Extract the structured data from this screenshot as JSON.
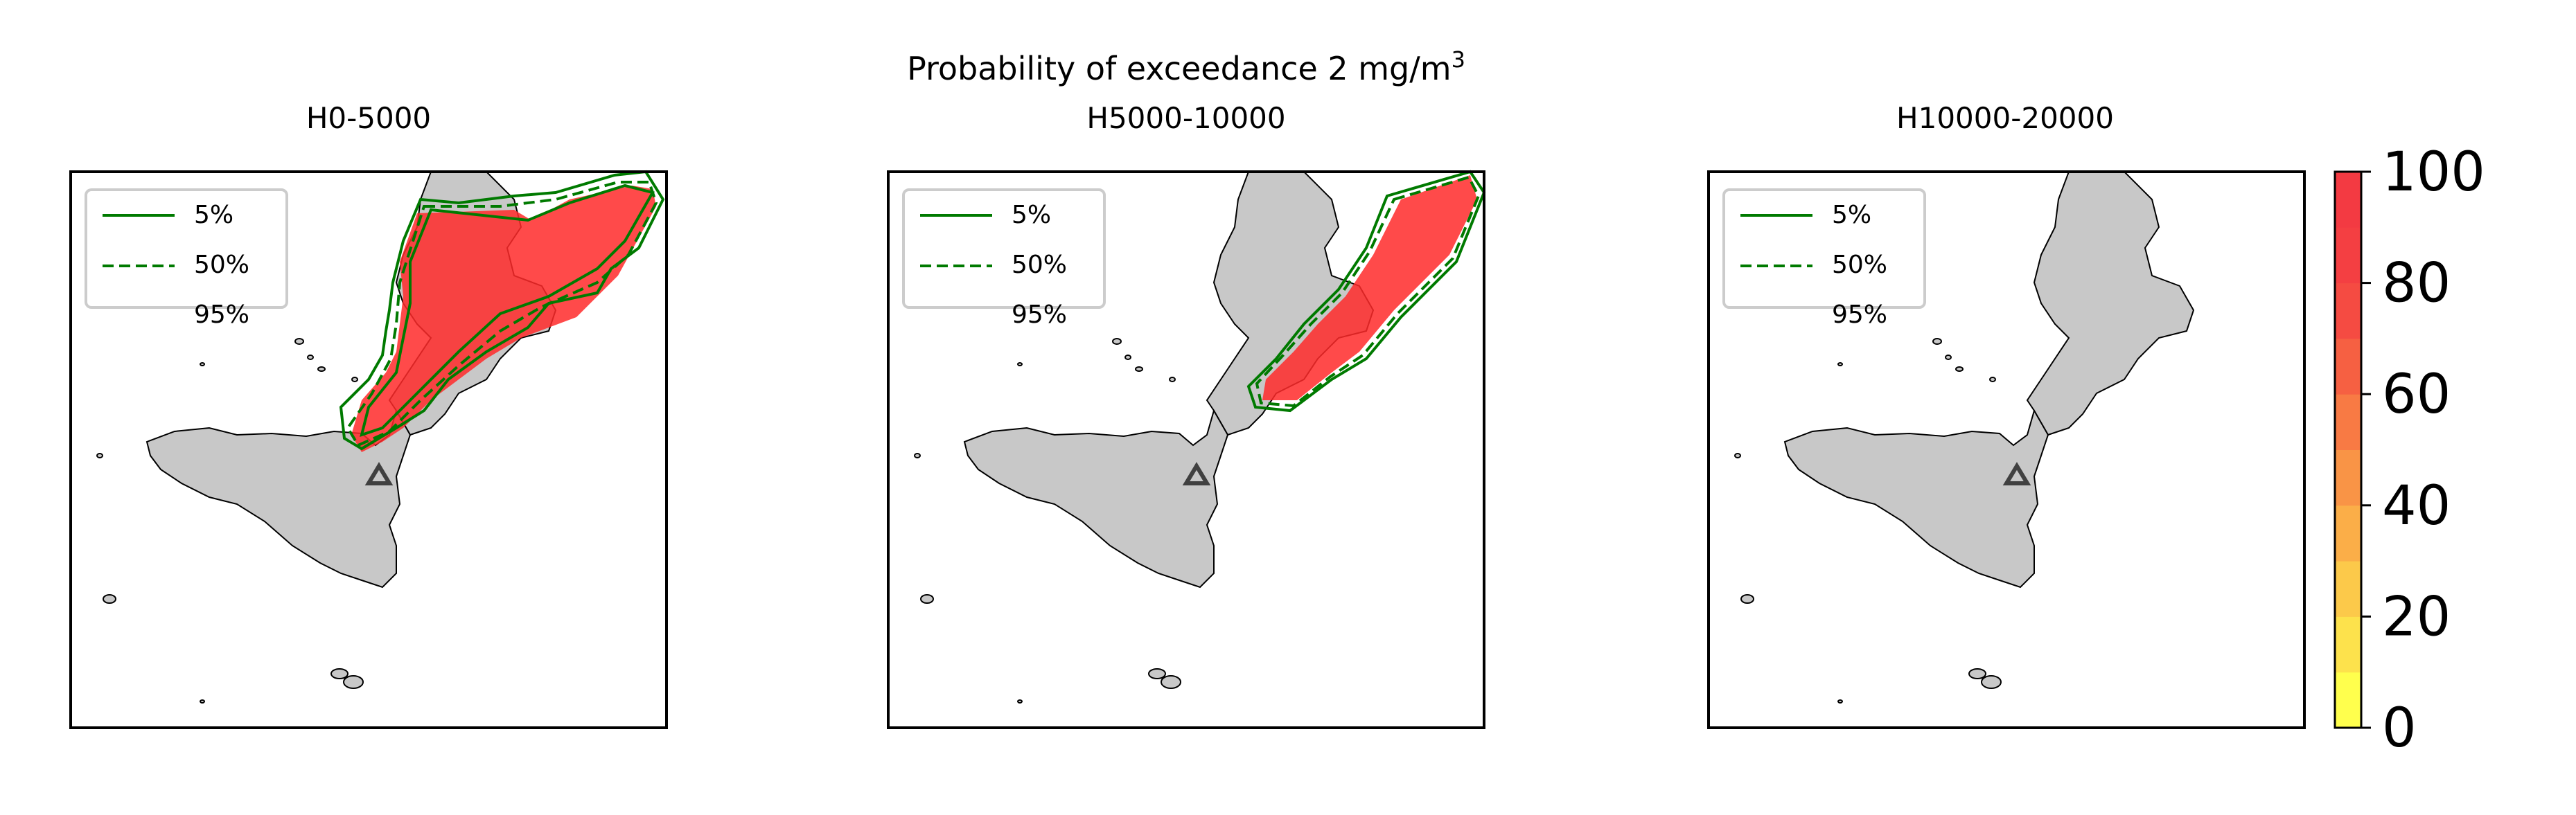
{
  "figure": {
    "suptitle_prefix": "Probability of exceedance 2 mg/m",
    "suptitle_sup": "3"
  },
  "panels": [
    {
      "title": "H0-5000"
    },
    {
      "title": "H5000-10000"
    },
    {
      "title": "H10000-20000"
    }
  ],
  "legend": {
    "items": [
      {
        "label": "5%",
        "style": "solid",
        "color": "#007a00"
      },
      {
        "label": "50%",
        "style": "dashed",
        "color": "#007a00"
      },
      {
        "label": "95%",
        "style": "dotted",
        "color": "#007a00"
      }
    ]
  },
  "colorbar": {
    "ticks": [
      "0",
      "20",
      "40",
      "60",
      "80",
      "100"
    ],
    "range": [
      0,
      100
    ],
    "colors": [
      "#ffff4d",
      "#fde24c",
      "#fcc94a",
      "#fbae48",
      "#f99446",
      "#f87a44",
      "#f66042",
      "#f54b42",
      "#f43f42",
      "#f33a42"
    ]
  },
  "map_style": {
    "land": "#c8c8c8",
    "coast": "#000000",
    "volcano_marker": "#404040",
    "plume": "#ff2020"
  }
}
